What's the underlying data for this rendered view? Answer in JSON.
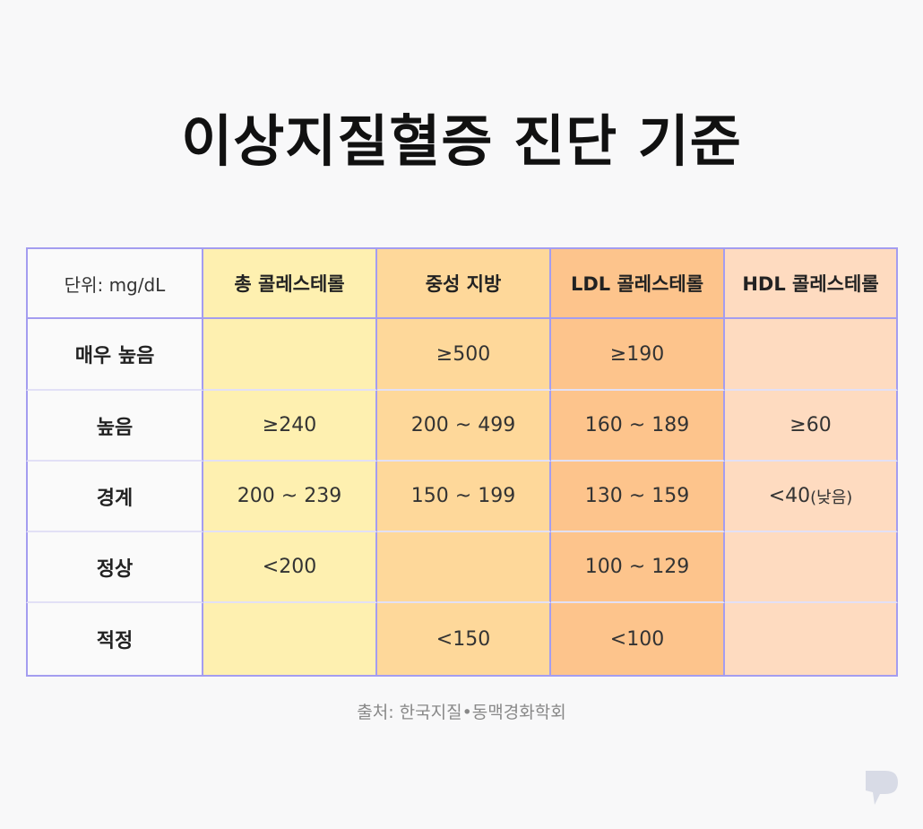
{
  "title": "이상지질혈증 진단 기준",
  "table": {
    "unit_label": "단위: mg/dL",
    "columns": [
      "총 콜레스테롤",
      "중성 지방",
      "LDL 콜레스테롤",
      "HDL 콜레스테롤"
    ],
    "rows": [
      {
        "label": "매우 높음",
        "values": [
          "",
          "≥500",
          "≥190",
          ""
        ]
      },
      {
        "label": "높음",
        "values": [
          "≥240",
          "200 ~ 499",
          "160 ~ 189",
          "≥60"
        ]
      },
      {
        "label": "경계",
        "values": [
          "200 ~ 239",
          "150 ~ 199",
          "130 ~ 159",
          "<40"
        ],
        "note": "(낮음)"
      },
      {
        "label": "정상",
        "values": [
          "<200",
          "",
          "100 ~ 129",
          ""
        ]
      },
      {
        "label": "적정",
        "values": [
          "",
          "<150",
          "<100",
          ""
        ]
      }
    ]
  },
  "source": "출처: 한국지질•동맥경화학회",
  "colors": {
    "border": "#a49df0",
    "total_cholesterol": "#fef0b0",
    "triglyceride": "#fed89a",
    "ldl": "#fdc48c",
    "hdl": "#fedbc0"
  },
  "icons": {
    "logo": "brand-logo-icon"
  }
}
